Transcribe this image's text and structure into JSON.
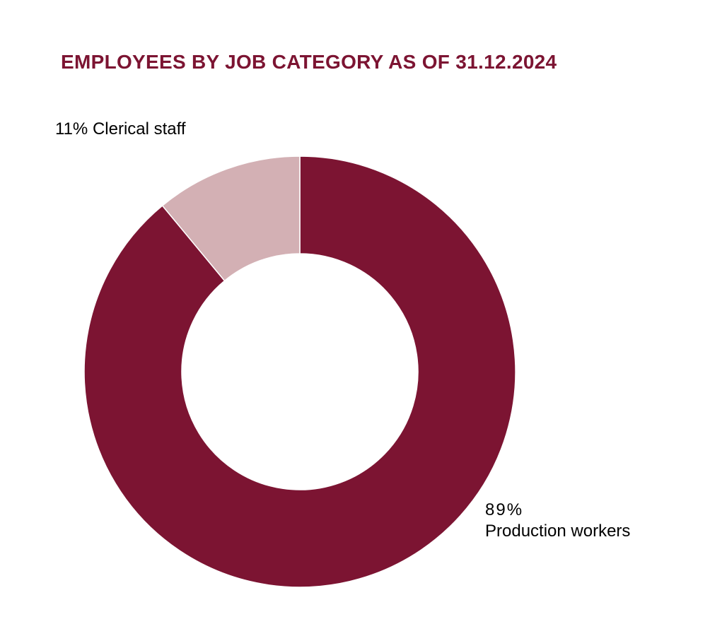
{
  "title": "EMPLOYEES BY JOB CATEGORY AS OF 31.12.2024",
  "colors": {
    "title": "#7c1432",
    "production_workers": "#7c1432",
    "clerical_staff": "#d3b0b4",
    "slice_border": "#ffffff"
  },
  "chart_data": {
    "type": "pie",
    "variant": "donut",
    "title": "EMPLOYEES BY JOB CATEGORY AS OF 31.12.2024",
    "slices": [
      {
        "label": "Production workers",
        "value": 89,
        "percent_label": "89%",
        "color": "#7c1432"
      },
      {
        "label": "Clerical staff",
        "value": 11,
        "percent_label": "11%",
        "color": "#d3b0b4"
      }
    ],
    "legend": "none",
    "data_labels": "outside"
  },
  "labels": {
    "clerical": {
      "percent": "11%",
      "name": "Clerical staff"
    },
    "production": {
      "percent": "89%",
      "name": "Production workers"
    }
  }
}
